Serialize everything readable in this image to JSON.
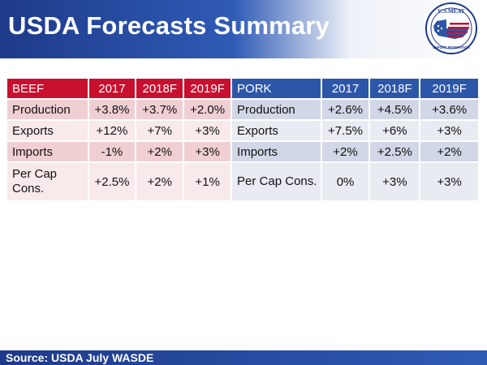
{
  "title": "USDA Forecasts Summary",
  "logo": {
    "top_text": "U.S.MEAT",
    "bottom_text": "EXPORT FEDERATION"
  },
  "beef": {
    "headers": [
      "BEEF",
      "2017",
      "2018F",
      "2019F"
    ],
    "rows": [
      [
        "Production",
        "+3.8%",
        "+3.7%",
        "+2.0%"
      ],
      [
        "Exports",
        "+12%",
        "+7%",
        "+3%"
      ],
      [
        "Imports",
        "-1%",
        "+2%",
        "+3%"
      ],
      [
        "Per Cap Cons.",
        "+2.5%",
        "+2%",
        "+1%"
      ]
    ]
  },
  "pork": {
    "headers": [
      "PORK",
      "2017",
      "2018F",
      "2019F"
    ],
    "rows": [
      [
        "Production",
        "+2.6%",
        "+4.5%",
        "+3.6%"
      ],
      [
        "Exports",
        "+7.5%",
        "+6%",
        "+3%"
      ],
      [
        "Imports",
        "+2%",
        "+2.5%",
        "+2%"
      ],
      [
        "Per Cap Cons.",
        "0%",
        "+3%",
        "+3%"
      ]
    ]
  },
  "footer": "Source: USDA July WASDE",
  "colors": {
    "beef_header": "#c8102e",
    "pork_header": "#2c56a8",
    "brand_blue": "#1e3a8a"
  }
}
